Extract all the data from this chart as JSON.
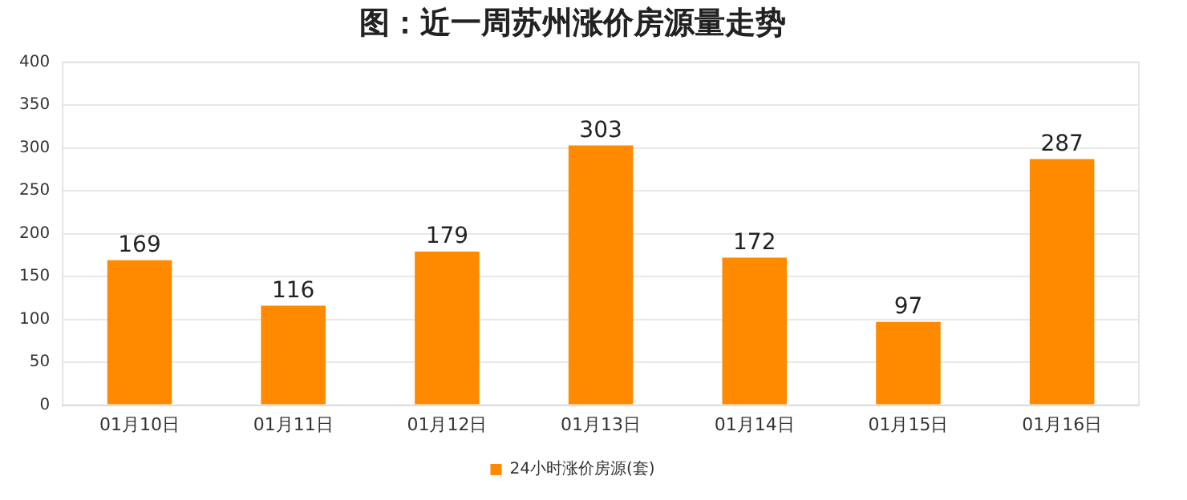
{
  "chart_data": {
    "type": "bar",
    "title": "图：近一周苏州涨价房源量走势",
    "categories": [
      "01月10日",
      "01月11日",
      "01月12日",
      "01月13日",
      "01月14日",
      "01月15日",
      "01月16日"
    ],
    "series": [
      {
        "name": "24小时涨价房源(套)",
        "color": "#ff8a00",
        "values": [
          169,
          116,
          179,
          303,
          172,
          97,
          287
        ]
      }
    ],
    "ylim": [
      0,
      400
    ],
    "yticks": [
      0,
      50,
      100,
      150,
      200,
      250,
      300,
      350,
      400
    ],
    "grid": "y",
    "legend": "bottom",
    "data_labels": true
  }
}
